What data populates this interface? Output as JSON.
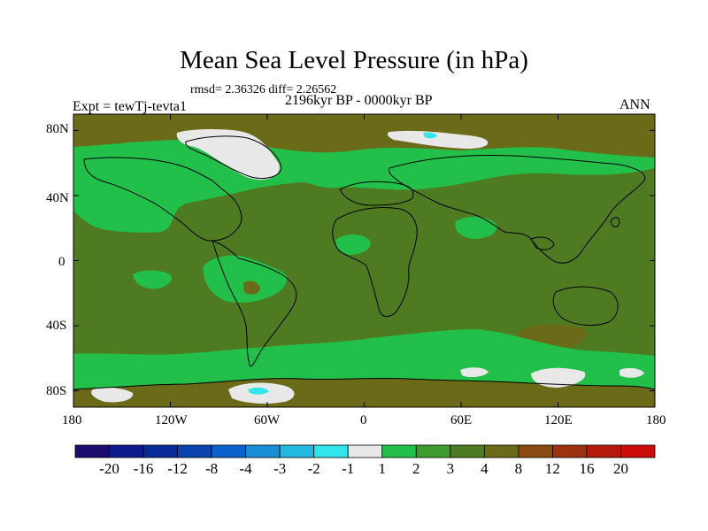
{
  "title": "Mean Sea Level Pressure (in hPa)",
  "stats_line": "rmsd= 2.36326 diff= 2.26562",
  "period": "2196kyr BP - 0000kyr BP",
  "experiment": "Expt = tewTj-tevta1",
  "season": "ANN",
  "lat_labels": [
    "80N",
    "40N",
    "0",
    "40S",
    "80S"
  ],
  "lon_labels": [
    "180",
    "120W",
    "60W",
    "0",
    "60E",
    "120E",
    "180"
  ],
  "colorbar": {
    "labels": [
      "-20",
      "-16",
      "-12",
      "-8",
      "-4",
      "-3",
      "-2",
      "-1",
      "1",
      "2",
      "3",
      "4",
      "8",
      "12",
      "16",
      "20"
    ],
    "colors": [
      "#1e0b6e",
      "#0c1a8c",
      "#0b2a9a",
      "#0a42b0",
      "#0c62cc",
      "#1b8ed8",
      "#22b8e0",
      "#33e4ec",
      "#e8e8e8",
      "#22c04a",
      "#3f9c31",
      "#4e7a22",
      "#6b6a18",
      "#8a4b12",
      "#9e3210",
      "#b41a0c",
      "#cc0b0b"
    ]
  },
  "colors": {
    "background_field": "#4e7a22",
    "light_green": "#22c04a",
    "mid_green": "#3f9c31",
    "brown": "#6b6a18",
    "white": "#e8e8e8",
    "cyan": "#33e4ec"
  }
}
